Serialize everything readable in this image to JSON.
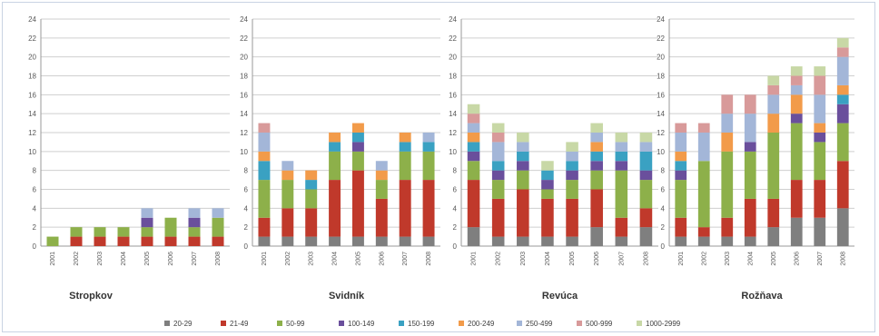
{
  "legend": {
    "entries": [
      "20-29",
      "21-49",
      "50-99",
      "100-149",
      "150-199",
      "200-249",
      "250-499",
      "500-999",
      "1000-2999"
    ],
    "colors": [
      "#7f7f7f",
      "#c0392b",
      "#8db04a",
      "#6a4f9c",
      "#3aa1c2",
      "#f29b4a",
      "#a3b6d8",
      "#d89a9a",
      "#c8d8a6"
    ],
    "colors_note_order": "same order as entries"
  },
  "chart_data": [
    {
      "type": "bar",
      "stacked": true,
      "title": "Stropkov",
      "categories": [
        "2001",
        "2002",
        "2003",
        "2004",
        "2005",
        "2006",
        "2007",
        "2008"
      ],
      "ylim": [
        0,
        24
      ],
      "yticks": [
        0,
        2,
        4,
        6,
        8,
        10,
        12,
        14,
        16,
        18,
        20,
        22,
        24
      ],
      "grid": true,
      "series": [
        {
          "name": "20-29",
          "values": [
            0,
            0,
            0,
            0,
            0,
            0,
            0,
            0
          ]
        },
        {
          "name": "21-49",
          "values": [
            0,
            1,
            1,
            1,
            1,
            1,
            1,
            1
          ]
        },
        {
          "name": "50-99",
          "values": [
            1,
            1,
            1,
            1,
            1,
            2,
            1,
            2
          ]
        },
        {
          "name": "100-149",
          "values": [
            0,
            0,
            0,
            0,
            1,
            0,
            1,
            0
          ]
        },
        {
          "name": "150-199",
          "values": [
            0,
            0,
            0,
            0,
            0,
            0,
            0,
            0
          ]
        },
        {
          "name": "200-249",
          "values": [
            0,
            0,
            0,
            0,
            0,
            0,
            0,
            0
          ]
        },
        {
          "name": "250-499",
          "values": [
            0,
            0,
            0,
            0,
            1,
            0,
            1,
            1
          ]
        },
        {
          "name": "500-999",
          "values": [
            0,
            0,
            0,
            0,
            0,
            0,
            0,
            0
          ]
        },
        {
          "name": "1000-2999",
          "values": [
            0,
            0,
            0,
            0,
            0,
            0,
            0,
            0
          ]
        }
      ]
    },
    {
      "type": "bar",
      "stacked": true,
      "title": "Svidník",
      "categories": [
        "2001",
        "2002",
        "2003",
        "2004",
        "2005",
        "2006",
        "2007",
        "2008"
      ],
      "ylim": [
        0,
        24
      ],
      "yticks": [
        0,
        2,
        4,
        6,
        8,
        10,
        12,
        14,
        16,
        18,
        20,
        22,
        24
      ],
      "grid": true,
      "series": [
        {
          "name": "20-29",
          "values": [
            1,
            1,
            1,
            1,
            1,
            1,
            1,
            1
          ]
        },
        {
          "name": "21-49",
          "values": [
            2,
            3,
            3,
            6,
            7,
            4,
            6,
            6
          ]
        },
        {
          "name": "50-99",
          "values": [
            4,
            3,
            2,
            3,
            2,
            2,
            3,
            3
          ]
        },
        {
          "name": "100-149",
          "values": [
            0,
            0,
            0,
            0,
            1,
            0,
            0,
            0
          ]
        },
        {
          "name": "150-199",
          "values": [
            2,
            0,
            1,
            1,
            1,
            0,
            1,
            1
          ]
        },
        {
          "name": "200-249",
          "values": [
            1,
            1,
            1,
            1,
            1,
            1,
            1,
            0
          ]
        },
        {
          "name": "250-499",
          "values": [
            2,
            1,
            0,
            0,
            0,
            1,
            0,
            1
          ]
        },
        {
          "name": "500-999",
          "values": [
            1,
            0,
            0,
            0,
            0,
            0,
            0,
            0
          ]
        },
        {
          "name": "1000-2999",
          "values": [
            0,
            0,
            0,
            0,
            0,
            0,
            0,
            0
          ]
        }
      ]
    },
    {
      "type": "bar",
      "stacked": true,
      "title": "Revúca",
      "categories": [
        "2001",
        "2002",
        "2003",
        "2004",
        "2005",
        "2006",
        "2007",
        "2008"
      ],
      "ylim": [
        0,
        24
      ],
      "yticks": [
        0,
        2,
        4,
        6,
        8,
        10,
        12,
        14,
        16,
        18,
        20,
        22,
        24
      ],
      "grid": true,
      "series": [
        {
          "name": "20-29",
          "values": [
            2,
            1,
            1,
            1,
            1,
            2,
            1,
            2
          ]
        },
        {
          "name": "21-49",
          "values": [
            5,
            4,
            5,
            4,
            4,
            4,
            2,
            2
          ]
        },
        {
          "name": "50-99",
          "values": [
            2,
            2,
            2,
            1,
            2,
            2,
            5,
            3
          ]
        },
        {
          "name": "100-149",
          "values": [
            1,
            1,
            1,
            1,
            1,
            1,
            1,
            1
          ]
        },
        {
          "name": "150-199",
          "values": [
            1,
            1,
            1,
            1,
            1,
            1,
            1,
            2
          ]
        },
        {
          "name": "200-249",
          "values": [
            1,
            0,
            0,
            0,
            0,
            1,
            0,
            0
          ]
        },
        {
          "name": "250-499",
          "values": [
            1,
            2,
            1,
            0,
            1,
            1,
            1,
            1
          ]
        },
        {
          "name": "500-999",
          "values": [
            1,
            1,
            0,
            0,
            0,
            0,
            0,
            0
          ]
        },
        {
          "name": "1000-2999",
          "values": [
            1,
            1,
            1,
            1,
            1,
            1,
            1,
            1
          ]
        }
      ]
    },
    {
      "type": "bar",
      "stacked": true,
      "title": "Rožňava",
      "categories": [
        "2001",
        "2002",
        "2003",
        "2004",
        "2005",
        "2006",
        "2007",
        "2008"
      ],
      "ylim": [
        0,
        24
      ],
      "yticks": [
        0,
        2,
        4,
        6,
        8,
        10,
        12,
        14,
        16,
        18,
        20,
        22,
        24
      ],
      "grid": true,
      "series": [
        {
          "name": "20-29",
          "values": [
            1,
            1,
            1,
            1,
            2,
            3,
            3,
            4
          ]
        },
        {
          "name": "21-49",
          "values": [
            2,
            1,
            2,
            4,
            3,
            4,
            4,
            5
          ]
        },
        {
          "name": "50-99",
          "values": [
            4,
            7,
            7,
            5,
            7,
            6,
            4,
            4
          ]
        },
        {
          "name": "100-149",
          "values": [
            1,
            0,
            0,
            1,
            0,
            1,
            1,
            2
          ]
        },
        {
          "name": "150-199",
          "values": [
            1,
            0,
            0,
            0,
            0,
            0,
            0,
            1
          ]
        },
        {
          "name": "200-249",
          "values": [
            1,
            0,
            2,
            0,
            2,
            2,
            1,
            1
          ]
        },
        {
          "name": "250-499",
          "values": [
            2,
            3,
            2,
            3,
            2,
            1,
            3,
            3
          ]
        },
        {
          "name": "500-999",
          "values": [
            1,
            1,
            2,
            2,
            1,
            1,
            2,
            1
          ]
        },
        {
          "name": "1000-2999",
          "values": [
            0,
            0,
            0,
            0,
            1,
            1,
            1,
            1
          ]
        }
      ]
    }
  ]
}
